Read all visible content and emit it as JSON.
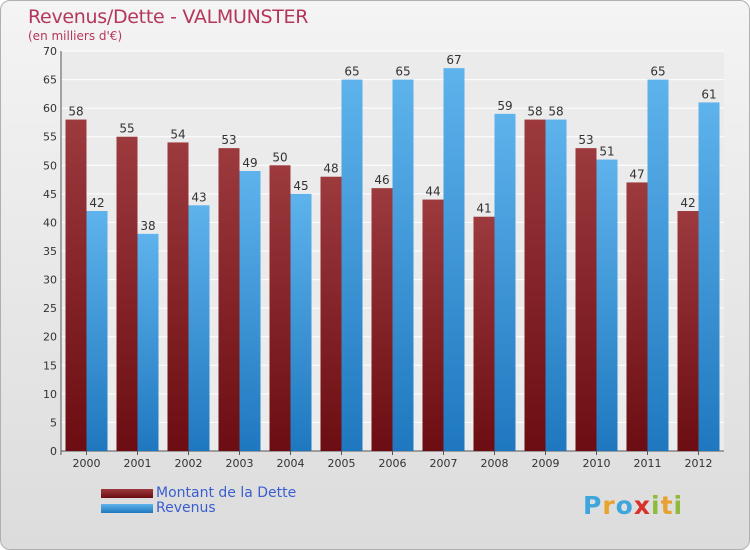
{
  "title": "Revenus/Dette - VALMUNSTER",
  "subtitle": "(en milliers d'€)",
  "logo": {
    "letters": [
      "P",
      "r",
      "o",
      "x",
      "i",
      "t",
      "i"
    ],
    "colors": [
      "#3ea6dc",
      "#e8a230",
      "#3ea6dc",
      "#d8302a",
      "#8fba3a",
      "#e8a230",
      "#8fba3a"
    ]
  },
  "colors": {
    "dette": "#6b0d12",
    "dette_light": "#9c3a3e",
    "revenus": "#1f78bf",
    "revenus_light": "#5eb3ec",
    "title": "#b5365b",
    "legend_text": "#3a5ed0"
  },
  "chart_data": {
    "type": "bar",
    "title": "Revenus/Dette - VALMUNSTER",
    "subtitle": "(en milliers d'€)",
    "categories": [
      "2000",
      "2001",
      "2002",
      "2003",
      "2004",
      "2005",
      "2006",
      "2007",
      "2008",
      "2009",
      "2010",
      "2011",
      "2012"
    ],
    "series": [
      {
        "name": "Montant de la Dette",
        "values": [
          58,
          55,
          54,
          53,
          50,
          48,
          46,
          44,
          41,
          58,
          53,
          47,
          42
        ]
      },
      {
        "name": "Revenus",
        "values": [
          42,
          38,
          43,
          49,
          45,
          65,
          65,
          67,
          59,
          58,
          51,
          65,
          61
        ]
      }
    ],
    "ylim": [
      0,
      70
    ],
    "yticks": [
      0,
      5,
      10,
      15,
      20,
      25,
      30,
      35,
      40,
      45,
      50,
      55,
      60,
      65,
      70
    ],
    "grid": true,
    "legend": "bottom-left"
  }
}
